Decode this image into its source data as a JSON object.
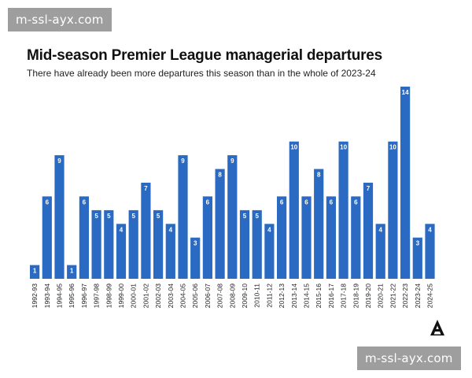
{
  "watermark": {
    "top_text": "m-ssl-ayx.com",
    "bottom_text": "m-ssl-ayx.com"
  },
  "colors": {
    "bar": "#2a6ac2",
    "bar_label": "#ffffff",
    "tick_label": "#222222",
    "title": "#111111"
  },
  "chart_data": {
    "type": "bar",
    "title": "Mid-season Premier League managerial departures",
    "subtitle": "There have already been more departures this season than in the whole of 2023-24",
    "xlabel": "",
    "ylabel": "",
    "ylim": [
      0,
      14
    ],
    "grid": false,
    "categories": [
      "1992-93",
      "1993-94",
      "1994-95",
      "1995-96",
      "1996-97",
      "1997-98",
      "1998-99",
      "1999-00",
      "2000-01",
      "2001-02",
      "2002-03",
      "2003-04",
      "2004-05",
      "2005-06",
      "2006-07",
      "2007-08",
      "2008-09",
      "2009-10",
      "2010-11",
      "2011-12",
      "2012-13",
      "2013-14",
      "2014-15",
      "2015-16",
      "2016-17",
      "2017-18",
      "2018-19",
      "2019-20",
      "2020-21",
      "2021-22",
      "2022-23",
      "2023-24",
      "2024-25"
    ],
    "values": [
      1,
      6,
      9,
      1,
      6,
      5,
      5,
      4,
      5,
      7,
      5,
      4,
      9,
      3,
      6,
      8,
      9,
      5,
      5,
      4,
      6,
      10,
      6,
      8,
      6,
      10,
      6,
      7,
      4,
      10,
      14,
      3,
      4
    ]
  },
  "logo": {
    "name": "The Athletic logo"
  }
}
